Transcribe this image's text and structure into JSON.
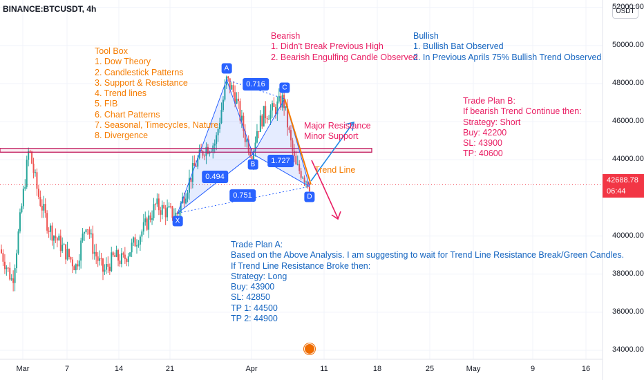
{
  "symbol": "BINANCE:BTCUSDT, 4h",
  "currency": "USDT",
  "last_price": {
    "value": "42688.78",
    "countdown": "06:44",
    "price": 42688.78
  },
  "colors": {
    "up": "#26a69a",
    "down": "#ef5350",
    "pattern": "#2962ff",
    "resistance": "#c2185b",
    "trend_line": "#f57c00",
    "red_arrow": "#e91e63",
    "blue_arrow": "#1e88e5",
    "orange_text": "#f57c00",
    "red_text": "#e91e63",
    "blue_text": "#1565c0",
    "price_line": "#f23645"
  },
  "annotations": {
    "toolbox": [
      "Tool Box",
      "1. Dow Theory",
      "2. Candlestick Patterns",
      "3. Support & Resistance",
      "4. Trend lines",
      "5. FIB",
      "6. Chart Patterns",
      "7. Seasonal, Timecycles, Nature",
      "8. Divergence"
    ],
    "bearish": [
      "Bearish",
      "1. Didn't Break Previous High",
      "2. Bearish Engulfing Candle Observed"
    ],
    "bullish": [
      "Bullish",
      "1. Bullish Bat Observed",
      "2. In Previous Aprils 75% Bullish Trend Observed"
    ],
    "plan_b": [
      "Trade Plan B:",
      "If bearish Trend Continue then:",
      "Strategy: Short",
      "Buy: 42200",
      "SL: 43900",
      "TP: 40600"
    ],
    "levels": [
      "Major Resistance",
      "Minor Support"
    ],
    "trend_line": "Trend Line",
    "plan_a": [
      "Trade Plan A:",
      "Based on the Above Analysis. I am suggesting to wait for Trend Line Resistance Break/Green Candles.",
      "If Trend Line Resistance Broke then:",
      "Strategy: Long",
      "Buy: 43900",
      "SL: 42850",
      "TP 1: 44500",
      "TP 2: 44900"
    ]
  },
  "chart_data": {
    "type": "candlestick",
    "title": "BINANCE:BTCUSDT, 4h",
    "x_ticks": [
      "Mar",
      "7",
      "14",
      "21",
      "Apr",
      "11",
      "18",
      "25",
      "May",
      "9",
      "16"
    ],
    "y_ticks": [
      "34000.00",
      "36000.00",
      "38000.00",
      "40000.00",
      "44000.00",
      "46000.00",
      "48000.00",
      "50000.00",
      "52000.00"
    ],
    "ylim": [
      33500,
      52000
    ],
    "harmonic_pattern": {
      "name": "Bullish Bat",
      "points": [
        {
          "label": "X",
          "date": "Mar 22",
          "price": 41200
        },
        {
          "label": "A",
          "date": "Mar 29",
          "price": 48200
        },
        {
          "label": "B",
          "date": "Apr 1",
          "price": 44300
        },
        {
          "label": "C",
          "date": "Apr 4",
          "price": 47200
        },
        {
          "label": "D",
          "date": "Apr 8",
          "price": 42600
        }
      ],
      "ratios": [
        {
          "label": "0.716"
        },
        {
          "label": "0.494"
        },
        {
          "label": "1.727"
        },
        {
          "label": "0.751"
        }
      ]
    },
    "resistance_zone": [
      44400,
      44600
    ],
    "current_price": 42688.78
  }
}
